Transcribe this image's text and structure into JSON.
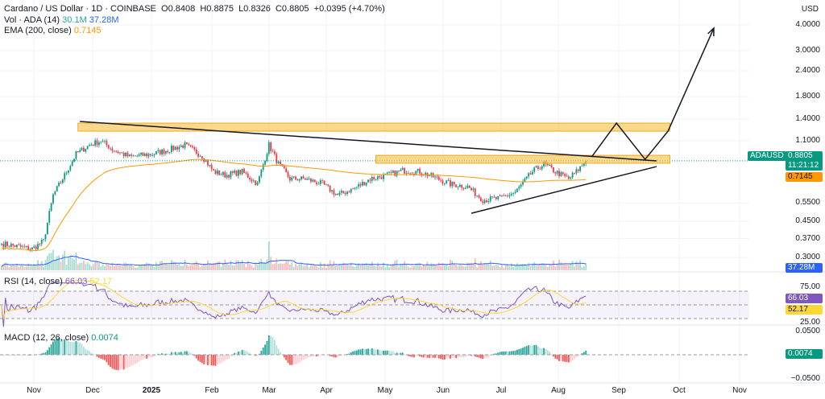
{
  "header": {
    "title": "Cardano / US Dollar · 1D · COINBASE",
    "open": "O0.8408",
    "high": "H0.8875",
    "low": "L0.8326",
    "close": "C0.8805",
    "change": "+0.0395 (+4.70%)"
  },
  "vol_legend": {
    "label": "Vol · ADA (14)",
    "v1": "30.1M",
    "v2": "37.28M"
  },
  "ema_legend": {
    "label": "EMA (200, close)",
    "value": "0.7145"
  },
  "rsi_legend": {
    "label": "RSI (14, close)",
    "v1": "66.03",
    "v2": "52.17"
  },
  "macd_legend": {
    "label": "MACD (12, 26, close)",
    "value": "0.0074"
  },
  "currency": "USD",
  "price_axis": [
    "4.0000",
    "3.0000",
    "2.4000",
    "1.8000",
    "1.4000",
    "1.1000",
    "0.5500",
    "0.4500",
    "0.3700",
    "0.3000"
  ],
  "price_axis_values": [
    4,
    3,
    2.4,
    1.8,
    1.4,
    1.1,
    0.55,
    0.45,
    0.37,
    0.3
  ],
  "tags": {
    "symbol": "ADAUSD",
    "last": "0.8805",
    "countdown": "11:21:12",
    "ema": "0.7145",
    "vol": "37.28M",
    "rsi1": "66.03",
    "rsi2": "52.17",
    "macd": "0.0074"
  },
  "rsi_axis": [
    "75.00",
    "25.00"
  ],
  "macd_axis": [
    "0.0500",
    "−0.0500"
  ],
  "time_axis": [
    "Nov",
    "Dec",
    "2025",
    "Feb",
    "Mar",
    "Apr",
    "May",
    "Jun",
    "Jul",
    "Aug",
    "Sep",
    "Oct",
    "Nov"
  ],
  "colors": {
    "up": "#089981",
    "down": "#f23645",
    "ema": "#ff9800",
    "volma": "#2962ff",
    "rsi": "#7e57c2",
    "rsima": "#fdd835",
    "zone": "#f7c23c"
  },
  "chart_data": {
    "type": "candlestick",
    "title": "Cardano / US Dollar · 1D",
    "yscale": "log",
    "ylim": [
      0.28,
      4.3
    ],
    "key_closes": [
      [
        0,
        0.35
      ],
      [
        16,
        0.33
      ],
      [
        22,
        0.36
      ],
      [
        27,
        0.6
      ],
      [
        33,
        0.75
      ],
      [
        39,
        0.95
      ],
      [
        46,
        1.05
      ],
      [
        52,
        1.1
      ],
      [
        58,
        1.0
      ],
      [
        67,
        0.92
      ],
      [
        79,
        0.95
      ],
      [
        88,
        1.0
      ],
      [
        96,
        1.05
      ],
      [
        105,
        0.93
      ],
      [
        111,
        0.78
      ],
      [
        117,
        0.75
      ],
      [
        126,
        0.78
      ],
      [
        134,
        0.68
      ],
      [
        140,
        1.05
      ],
      [
        145,
        0.85
      ],
      [
        151,
        0.72
      ],
      [
        159,
        0.72
      ],
      [
        168,
        0.68
      ],
      [
        176,
        0.6
      ],
      [
        185,
        0.65
      ],
      [
        193,
        0.72
      ],
      [
        202,
        0.75
      ],
      [
        210,
        0.79
      ],
      [
        219,
        0.78
      ],
      [
        227,
        0.73
      ],
      [
        235,
        0.68
      ],
      [
        244,
        0.66
      ],
      [
        252,
        0.57
      ],
      [
        261,
        0.58
      ],
      [
        269,
        0.62
      ],
      [
        278,
        0.78
      ],
      [
        284,
        0.85
      ],
      [
        290,
        0.78
      ],
      [
        297,
        0.72
      ],
      [
        301,
        0.78
      ],
      [
        306,
        0.88
      ]
    ],
    "ema_last": 0.7145,
    "drawings": {
      "zones": [
        {
          "from": 40,
          "to": 350,
          "low": 1.225,
          "high": 1.34
        },
        {
          "from": 196,
          "to": 350,
          "low": 0.857,
          "high": 0.936
        }
      ],
      "resistance": [
        [
          41,
          1.365
        ],
        [
          343,
          0.88
        ]
      ],
      "support": [
        [
          246,
          0.491
        ],
        [
          343,
          0.826
        ]
      ],
      "projection": [
        [
          309,
          0.92
        ],
        [
          322,
          1.34
        ],
        [
          337,
          0.895
        ],
        [
          349,
          1.225
        ],
        [
          373,
          3.86
        ]
      ]
    }
  }
}
